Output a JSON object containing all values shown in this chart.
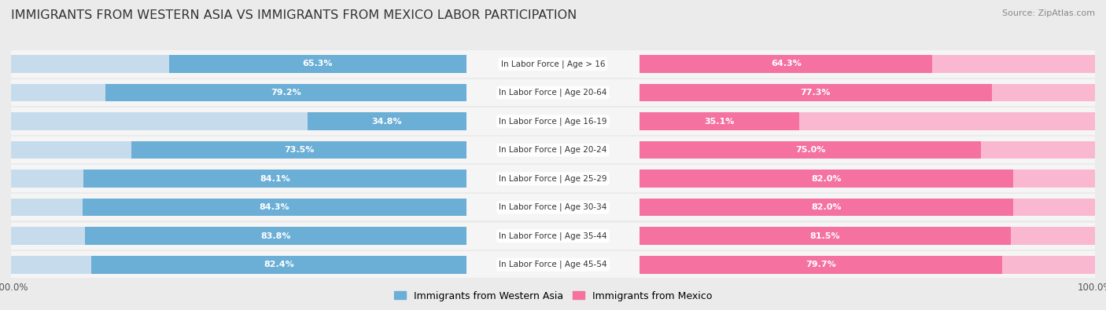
{
  "title": "IMMIGRANTS FROM WESTERN ASIA VS IMMIGRANTS FROM MEXICO LABOR PARTICIPATION",
  "source": "Source: ZipAtlas.com",
  "categories": [
    "In Labor Force | Age > 16",
    "In Labor Force | Age 20-64",
    "In Labor Force | Age 16-19",
    "In Labor Force | Age 20-24",
    "In Labor Force | Age 25-29",
    "In Labor Force | Age 30-34",
    "In Labor Force | Age 35-44",
    "In Labor Force | Age 45-54"
  ],
  "western_asia": [
    65.3,
    79.2,
    34.8,
    73.5,
    84.1,
    84.3,
    83.8,
    82.4
  ],
  "mexico": [
    64.3,
    77.3,
    35.1,
    75.0,
    82.0,
    82.0,
    81.5,
    79.7
  ],
  "color_western_asia": "#6BAED6",
  "color_mexico": "#F471A0",
  "color_western_asia_light": "#C6DCEC",
  "color_mexico_light": "#FAB8D0",
  "bg_color": "#EBEBEB",
  "row_bg_color": "#F5F5F5",
  "row_border_color": "#DDDDDD",
  "title_fontsize": 11.5,
  "source_fontsize": 8,
  "label_fontsize": 8,
  "cat_fontsize": 7.5,
  "tick_fontsize": 8.5,
  "max_value": 100.0,
  "bar_height": 0.62
}
